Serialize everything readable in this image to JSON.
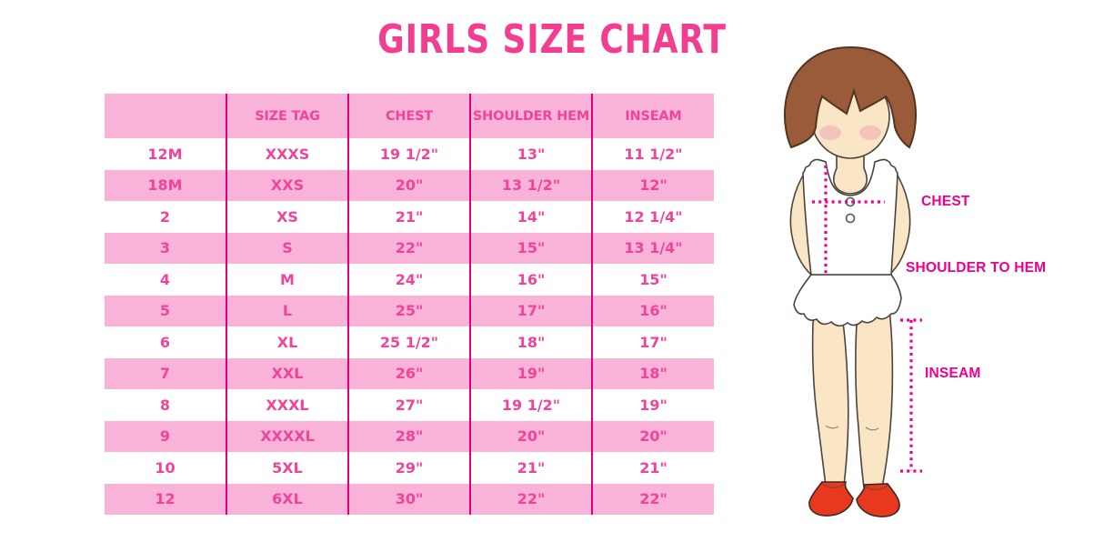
{
  "title": "GIRLS SIZE CHART",
  "colors": {
    "title-text": "#F23E90",
    "table-text": "#EE459B",
    "row-pink": "#F9B3D8",
    "divider": "#E0007F",
    "label-text": "#EC008C",
    "hair": "#9A5B3B",
    "skin": "#FAE5C4",
    "blush": "#F0A8B8",
    "shoe": "#E8391F"
  },
  "chart_data": {
    "type": "table",
    "title": "GIRLS SIZE CHART",
    "columns": [
      "",
      "SIZE TAG",
      "CHEST",
      "SHOULDER HEM",
      "INSEAM"
    ],
    "rows": [
      [
        "12M",
        "XXXS",
        "19 1/2\"",
        "13\"",
        "11 1/2\""
      ],
      [
        "18M",
        "XXS",
        "20\"",
        "13 1/2\"",
        "12\""
      ],
      [
        "2",
        "XS",
        "21\"",
        "14\"",
        "12 1/4\""
      ],
      [
        "3",
        "S",
        "22\"",
        "15\"",
        "13 1/4\""
      ],
      [
        "4",
        "M",
        "24\"",
        "16\"",
        "15\""
      ],
      [
        "5",
        "L",
        "25\"",
        "17\"",
        "16\""
      ],
      [
        "6",
        "XL",
        "25 1/2\"",
        "18\"",
        "17\""
      ],
      [
        "7",
        "XXL",
        "26\"",
        "19\"",
        "18\""
      ],
      [
        "8",
        "XXXL",
        "27\"",
        "19 1/2\"",
        "19\""
      ],
      [
        "9",
        "XXXXL",
        "28\"",
        "20\"",
        "20\""
      ],
      [
        "10",
        "5XL",
        "29\"",
        "21\"",
        "21\""
      ],
      [
        "12",
        "6XL",
        "30\"",
        "22\"",
        "22\""
      ]
    ],
    "layout": {
      "grid": "vertical column dividers only",
      "row_shading": "alternating white / light pink",
      "legend": "none"
    }
  },
  "figure": {
    "description": "illustrated girl showing measurement locations",
    "labels": {
      "chest": "CHEST",
      "shoulder_to_hem": "SHOULDER TO HEM",
      "inseam": "INSEAM"
    }
  }
}
